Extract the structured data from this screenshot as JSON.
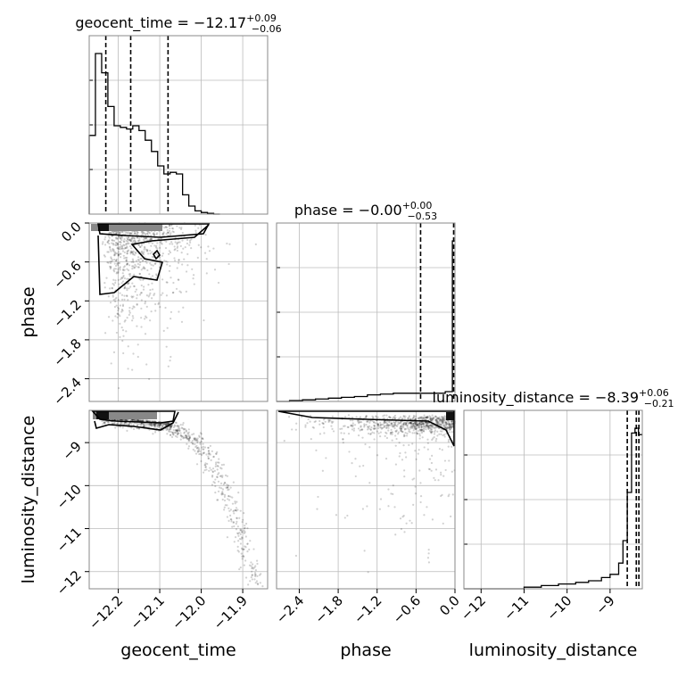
{
  "chart_data": {
    "type": "corner",
    "parameters": [
      "geocent_time",
      "phase",
      "luminosity_distance"
    ],
    "axis_labels": {
      "geocent_time": "geocent_time",
      "phase": "phase",
      "luminosity_distance": "luminosity_distance"
    },
    "titles": [
      {
        "param": "geocent_time",
        "prefix": "geocent_time = ",
        "median": "−12.17",
        "plus": "+0.09",
        "minus": "−0.06"
      },
      {
        "param": "phase",
        "prefix": "phase = ",
        "median": "−0.00",
        "plus": "+0.00",
        "minus": "−0.53"
      },
      {
        "param": "luminosity_distance",
        "prefix": "luminosity_distance = ",
        "median": "−8.39",
        "plus": "+0.06",
        "minus": "−0.21"
      }
    ],
    "ranges": {
      "geocent_time": [
        -12.27,
        -11.84
      ],
      "phase": [
        -2.75,
        0.0
      ],
      "luminosity_distance": [
        -12.4,
        -8.25
      ]
    },
    "ticks": {
      "geocent_time": [
        {
          "v": -12.2,
          "label": "−12.2"
        },
        {
          "v": -12.1,
          "label": "−12.1"
        },
        {
          "v": -12.0,
          "label": "−12.0"
        },
        {
          "v": -11.9,
          "label": "−11.9"
        }
      ],
      "phase": [
        {
          "v": -2.4,
          "label": "−2.4"
        },
        {
          "v": -1.8,
          "label": "−1.8"
        },
        {
          "v": -1.2,
          "label": "−1.2"
        },
        {
          "v": -0.6,
          "label": "−0.6"
        },
        {
          "v": 0.0,
          "label": "0.0"
        }
      ],
      "luminosity_distance": [
        {
          "v": -12,
          "label": "−12"
        },
        {
          "v": -11,
          "label": "−11"
        },
        {
          "v": -10,
          "label": "−10"
        },
        {
          "v": -9,
          "label": "−9"
        }
      ]
    },
    "quantiles": {
      "geocent_time": [
        -12.23,
        -12.17,
        -12.08
      ],
      "phase": [
        -0.53,
        -0.002
      ],
      "luminosity_distance": [
        -8.6,
        -8.39,
        -8.33
      ]
    },
    "histograms": {
      "geocent_time": {
        "edges": [
          -12.27,
          -12.255,
          -12.24,
          -12.225,
          -12.21,
          -12.195,
          -12.18,
          -12.165,
          -12.15,
          -12.135,
          -12.12,
          -12.105,
          -12.09,
          -12.075,
          -12.06,
          -12.045,
          -12.03,
          -12.015,
          -12.0,
          -11.985,
          -11.97,
          -11.955
        ],
        "counts": [
          0.49,
          1.0,
          0.88,
          0.67,
          0.55,
          0.54,
          0.53,
          0.55,
          0.52,
          0.46,
          0.39,
          0.3,
          0.25,
          0.26,
          0.25,
          0.12,
          0.05,
          0.02,
          0.01,
          0.005,
          0
        ]
      },
      "phase": {
        "edges": [
          -2.75,
          -2.55,
          -2.35,
          -2.15,
          -1.95,
          -1.75,
          -1.55,
          -1.35,
          -1.15,
          -0.95,
          -0.75,
          -0.55,
          -0.35,
          -0.15,
          -0.04,
          0.0
        ],
        "counts": [
          0.0,
          0.005,
          0.01,
          0.015,
          0.02,
          0.025,
          0.03,
          0.04,
          0.045,
          0.05,
          0.05,
          0.05,
          0.05,
          0.06,
          0.98
        ]
      },
      "luminosity_distance": {
        "edges": [
          -12.4,
          -11.0,
          -10.6,
          -10.2,
          -9.8,
          -9.5,
          -9.2,
          -9.0,
          -8.8,
          -8.7,
          -8.6,
          -8.5,
          -8.42,
          -8.34,
          -8.25
        ],
        "counts": [
          0.0,
          0.01,
          0.02,
          0.03,
          0.04,
          0.05,
          0.07,
          0.09,
          0.16,
          0.3,
          0.6,
          0.97,
          1.0,
          0.96
        ]
      }
    },
    "scatter_2d": [
      {
        "x_param": "geocent_time",
        "y_param": "phase",
        "contour_levels": 2
      },
      {
        "x_param": "geocent_time",
        "y_param": "luminosity_distance",
        "contour_levels": 2
      },
      {
        "x_param": "phase",
        "y_param": "luminosity_distance",
        "contour_levels": 2
      }
    ],
    "grid": true,
    "legend": "none"
  }
}
